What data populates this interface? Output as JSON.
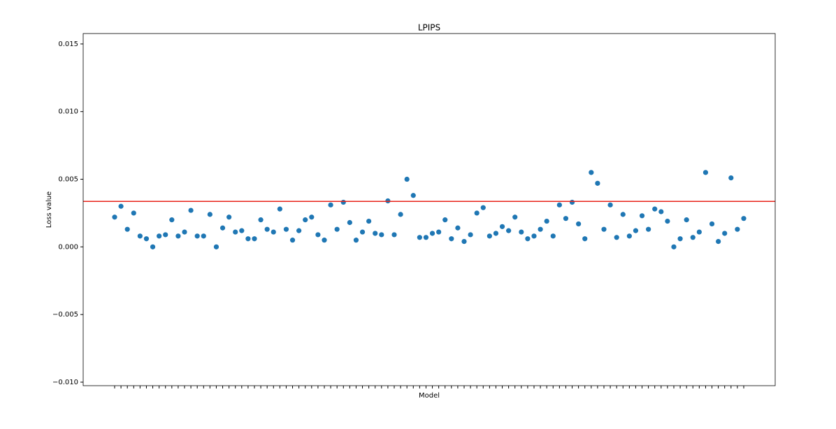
{
  "chart_data": {
    "type": "scatter",
    "title": "LPIPS",
    "x_label": "Model",
    "y_label": "Loss value",
    "categories": [
      null,
      null,
      null,
      null,
      null,
      null,
      null,
      null,
      null,
      null,
      null,
      null,
      null,
      null,
      null,
      null,
      null,
      null,
      null,
      null,
      null,
      null,
      null,
      null,
      null,
      null,
      null,
      null,
      null,
      null,
      null,
      null,
      null,
      null,
      null,
      null,
      null,
      null,
      null,
      null,
      null,
      null,
      null,
      null,
      null,
      null,
      null,
      null,
      null,
      null,
      null,
      null,
      null,
      null,
      null,
      null,
      null,
      null,
      null,
      null,
      null,
      null,
      null,
      null,
      null,
      null,
      null,
      null,
      null,
      null,
      null,
      null,
      null,
      null,
      null,
      null,
      null,
      null,
      null,
      null,
      null,
      null,
      null,
      null,
      null,
      null,
      null,
      null,
      null,
      null,
      null,
      null,
      null,
      null,
      null,
      null,
      null,
      null,
      null,
      null
    ],
    "values": [
      0.0022,
      0.003,
      0.0013,
      0.0025,
      0.0008,
      0.0006,
      0.0,
      0.0008,
      0.0009,
      0.002,
      0.0008,
      0.0011,
      0.0027,
      0.0008,
      0.0008,
      0.0024,
      0.0,
      0.0014,
      0.0022,
      0.0011,
      0.0012,
      0.0006,
      0.0006,
      0.002,
      0.0013,
      0.0011,
      0.0028,
      0.0013,
      0.0005,
      0.0012,
      0.002,
      0.0022,
      0.0009,
      0.0005,
      0.0031,
      0.0013,
      0.0033,
      0.0018,
      0.0005,
      0.0011,
      0.0019,
      0.001,
      0.0009,
      0.0034,
      0.0009,
      0.0024,
      0.005,
      0.0038,
      0.0007,
      0.0007,
      0.001,
      0.0011,
      0.002,
      0.0006,
      0.0014,
      0.0004,
      0.0009,
      0.0025,
      0.0029,
      0.0008,
      0.001,
      0.0015,
      0.0012,
      0.0022,
      0.0011,
      0.0006,
      0.0008,
      0.0013,
      0.0019,
      0.0008,
      0.0031,
      0.0021,
      0.0033,
      0.0017,
      0.0006,
      0.0055,
      0.0047,
      0.0013,
      0.0031,
      0.0007,
      0.0024,
      0.0008,
      0.0012,
      0.0023,
      0.0013,
      0.0028,
      0.0026,
      0.0019,
      0.0,
      0.0006,
      0.002,
      0.0007,
      0.0011,
      0.0055,
      0.0017,
      0.0004,
      0.001,
      0.0051,
      0.0013,
      0.0021
    ],
    "color": "#1f77b4",
    "hline": 0.00336,
    "hline_color": "#e8231a",
    "ylim": [
      -0.01026,
      0.01577
    ],
    "yticks": [
      {
        "value": -0.01,
        "label": "−0.010"
      },
      {
        "value": -0.005,
        "label": "−0.005"
      },
      {
        "value": 0,
        "label": "0.000"
      },
      0.005,
      {
        "value": 0.01,
        "label": "0.010"
      },
      0.015
    ],
    "grid": false
  }
}
